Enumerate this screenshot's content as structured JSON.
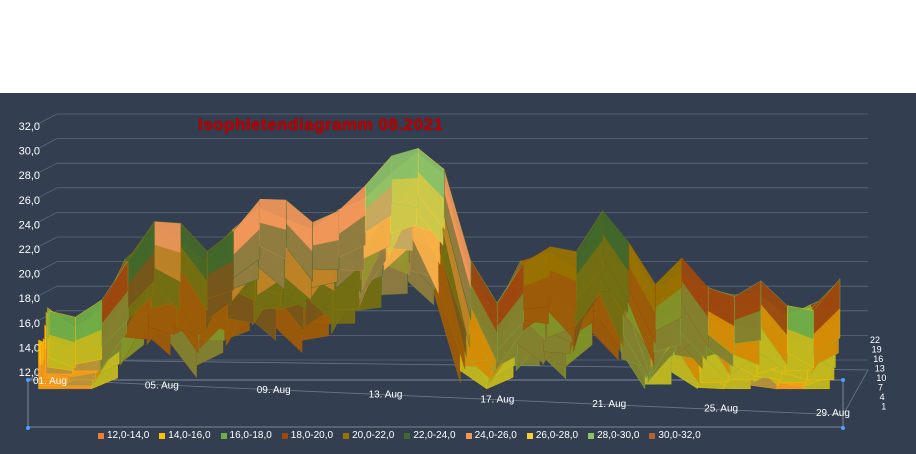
{
  "chart_data": {
    "type": "surface",
    "title": "Isophletendiagramm 08.2021",
    "y_ticks": [
      "12,0",
      "14,0",
      "16,0",
      "18,0",
      "20,0",
      "22,0",
      "24,0",
      "26,0",
      "28,0",
      "30,0",
      "32,0"
    ],
    "x_ticks": [
      "01. Aug",
      "05. Aug",
      "09. Aug",
      "13. Aug",
      "17. Aug",
      "21. Aug",
      "25. Aug",
      "29. Aug"
    ],
    "depth_ticks": [
      "1",
      "4",
      "7",
      "10",
      "13",
      "16",
      "19",
      "22"
    ],
    "ylim": [
      12,
      32
    ],
    "x": [
      1,
      2,
      3,
      4,
      5,
      6,
      7,
      8,
      9,
      10,
      11,
      12,
      13,
      14,
      15,
      16,
      17,
      18,
      19,
      20,
      21,
      22,
      23,
      24,
      25,
      26,
      27,
      28,
      29,
      30,
      31
    ],
    "series_profile": [
      16.8,
      15.5,
      17.9,
      21.6,
      23.7,
      23.3,
      22.2,
      23.8,
      25.2,
      25.5,
      24.8,
      25.1,
      26.2,
      29.5,
      30.8,
      28.0,
      20.2,
      17.9,
      21.3,
      21.4,
      21.2,
      25.7,
      22.6,
      18.2,
      21.1,
      19.5,
      17.8,
      18.5,
      17.6,
      17.5,
      18.9
    ],
    "bands": [
      {
        "name": "12,0-14,0",
        "color": "#ed7d31"
      },
      {
        "name": "14,0-16,0",
        "color": "#ffc000"
      },
      {
        "name": "16,0-18,0",
        "color": "#70ad47"
      },
      {
        "name": "18,0-20,0",
        "color": "#9e480e"
      },
      {
        "name": "20,0-22,0",
        "color": "#997300"
      },
      {
        "name": "22,0-24,0",
        "color": "#43682b"
      },
      {
        "name": "24,0-26,0",
        "color": "#f1975a"
      },
      {
        "name": "26,0-28,0",
        "color": "#ffcd33"
      },
      {
        "name": "28,0-30,0",
        "color": "#8cc168"
      },
      {
        "name": "30,0-32,0",
        "color": "#b3622a"
      }
    ]
  }
}
